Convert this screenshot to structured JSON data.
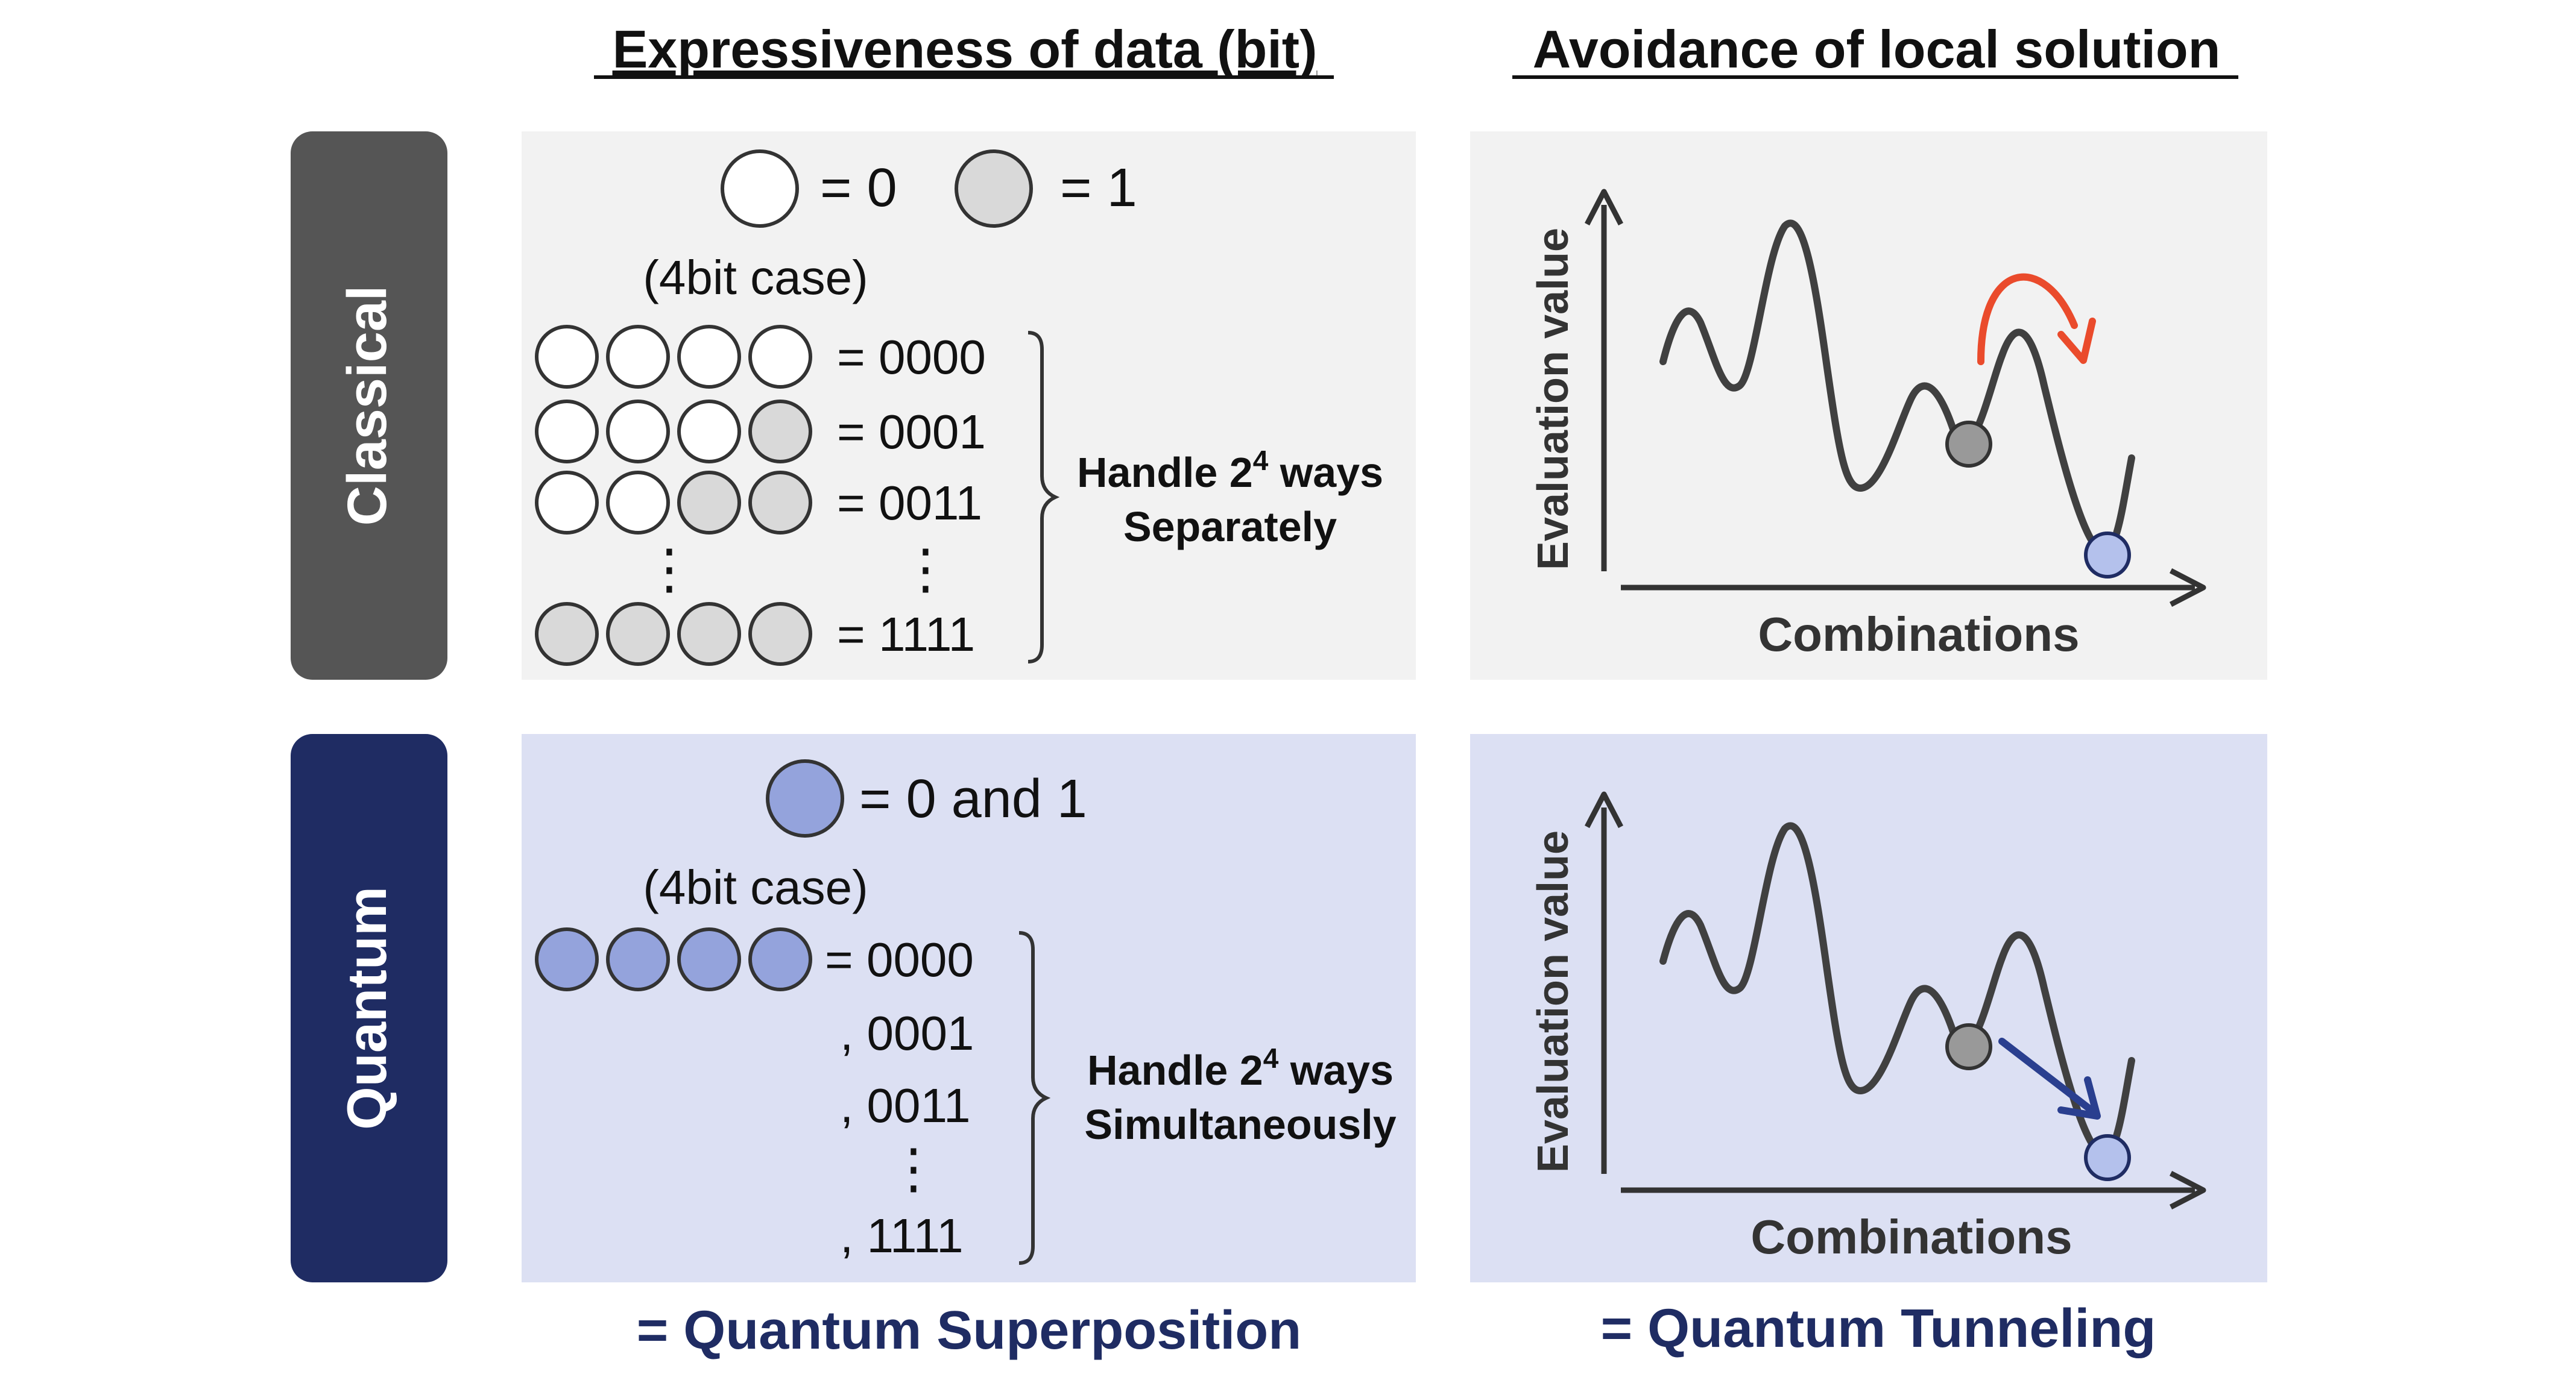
{
  "headers": {
    "left": "Expressiveness of data (bit)",
    "right": "Avoidance of local solution"
  },
  "rows": {
    "classical": "Classical",
    "quantum": "Quantum"
  },
  "classical_bits": {
    "legend_zero": "= 0",
    "legend_one": "= 1",
    "case_label": "(4bit case)",
    "rows": [
      {
        "pattern": [
          0,
          0,
          0,
          0
        ],
        "label": "= 0000"
      },
      {
        "pattern": [
          0,
          0,
          0,
          1
        ],
        "label": "= 0001"
      },
      {
        "pattern": [
          0,
          0,
          1,
          1
        ],
        "label": "= 0011"
      },
      {
        "pattern": [
          1,
          1,
          1,
          1
        ],
        "label": "= 1111"
      }
    ],
    "ellipsis": "⋮",
    "note_line1_prefix": "Handle 2",
    "note_sup": "4",
    "note_line1_suffix": " ways",
    "note_line2": "Separately"
  },
  "quantum_bits": {
    "legend": "= 0 and 1",
    "case_label": "(4bit case)",
    "first_label": "= 0000",
    "labels": [
      ", 0001",
      ", 0011",
      ", 1111"
    ],
    "ellipsis": "⋮",
    "note_line1_prefix": "Handle 2",
    "note_sup": "4",
    "note_line1_suffix": " ways",
    "note_line2": "Simultaneously"
  },
  "graphs": {
    "ylabel": "Evaluation value",
    "xlabel": "Combinations"
  },
  "footers": {
    "left": "= Quantum Superposition",
    "right": "= Quantum Tunneling"
  },
  "colors": {
    "classical_tab": "#555555",
    "quantum_tab": "#1f2c63",
    "classical_panel": "#f2f2f2",
    "quantum_panel": "#dce0f3",
    "bit_zero": "#ffffff",
    "bit_one": "#d9d9d9",
    "qubit": "#94a3dc",
    "local_ball": "#999999",
    "global_ball": "#b4c1ec",
    "hop_arrow": "#ea4b2c",
    "tunnel_arrow": "#2a3f8f",
    "footer_text": "#1f2c63"
  }
}
